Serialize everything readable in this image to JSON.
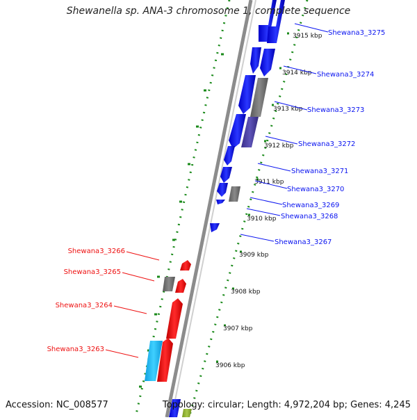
{
  "title": "Shewanella sp. ANA-3 chromosome 1, complete sequence",
  "accession": "Accession: NC_008577",
  "topology": "Topology: circular; Length: 4,972,204 bp; Genes: 4,245",
  "ruler_labels": [
    "3915 kbp",
    "3914 kbp",
    "3913 kbp",
    "3912 kbp",
    "3911 kbp",
    "3910 kbp",
    "3909 kbp",
    "3908 kbp",
    "3907 kbp",
    "3906 kbp"
  ],
  "genes_right": [
    "Shewana3_3275",
    "Shewana3_3274",
    "Shewana3_3273",
    "Shewana3_3272",
    "Shewana3_3271",
    "Shewana3_3270",
    "Shewana3_3269",
    "Shewana3_3268",
    "Shewana3_3267"
  ],
  "genes_left": [
    "Shewana3_3266",
    "Shewana3_3265",
    "Shewana3_3264",
    "Shewana3_3263"
  ],
  "colors": {
    "forward_strand": "#0a14f0",
    "reverse_strand": "#ee1010",
    "gray_feature": "#707070",
    "purple_feature": "#4a3ea0",
    "cyan_feature": "#18b8f0",
    "backbone": "#8c8c8c",
    "ticks": "#1a8a1a"
  }
}
